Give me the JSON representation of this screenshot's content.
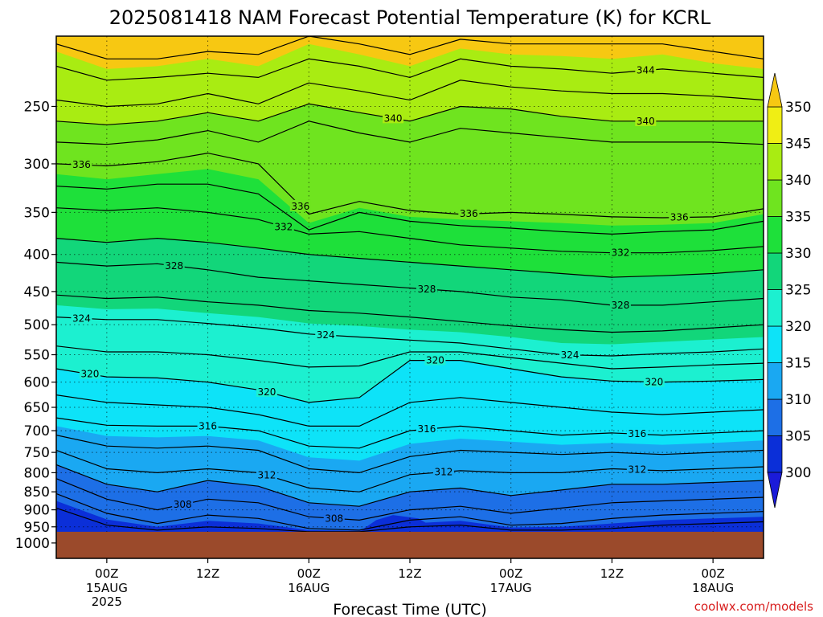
{
  "title": "2025081418 NAM Forecast Potential Temperature (K) for KCRL",
  "xlabel": "Forecast Time (UTC)",
  "credit": "coolwx.com/models",
  "colors": {
    "ground": "#9b4a2b",
    "bands": [
      {
        "from": 300,
        "to": 305,
        "color": "#0b2fd8"
      },
      {
        "from": 305,
        "to": 310,
        "color": "#1d6fe6"
      },
      {
        "from": 310,
        "to": 315,
        "color": "#1aa8f2"
      },
      {
        "from": 315,
        "to": 320,
        "color": "#0de3f8"
      },
      {
        "from": 320,
        "to": 325,
        "color": "#1cf0d0"
      },
      {
        "from": 325,
        "to": 330,
        "color": "#12d67a"
      },
      {
        "from": 330,
        "to": 335,
        "color": "#1ee03a"
      },
      {
        "from": 335,
        "to": 340,
        "color": "#6fe41f"
      },
      {
        "from": 340,
        "to": 345,
        "color": "#a9ec12"
      },
      {
        "from": 345,
        "to": 350,
        "color": "#f0ee14"
      },
      {
        "from": 350,
        "to": 360,
        "color": "#f7c812"
      }
    ],
    "below_min": "#1b1bd9",
    "above_max": "#f7c812"
  },
  "chart_data": {
    "type": "heatmap",
    "title": "2025081418 NAM Forecast Potential Temperature (K) for KCRL",
    "xlabel": "Forecast Time (UTC)",
    "ylabel": "",
    "x_ticks": [
      {
        "hour": 6,
        "label": "00Z",
        "sub": [
          "15AUG",
          "2025"
        ]
      },
      {
        "hour": 18,
        "label": "12Z",
        "sub": []
      },
      {
        "hour": 30,
        "label": "00Z",
        "sub": [
          "16AUG"
        ]
      },
      {
        "hour": 42,
        "label": "12Z",
        "sub": []
      },
      {
        "hour": 54,
        "label": "00Z",
        "sub": [
          "17AUG"
        ]
      },
      {
        "hour": 66,
        "label": "12Z",
        "sub": []
      },
      {
        "hour": 78,
        "label": "00Z",
        "sub": [
          "18AUG"
        ]
      }
    ],
    "x_range_hours": [
      0,
      84
    ],
    "y_ticks": [
      250,
      300,
      350,
      400,
      450,
      500,
      550,
      600,
      650,
      700,
      750,
      800,
      850,
      900,
      950,
      1000
    ],
    "y_range_mb": [
      200,
      1050
    ],
    "y_scale": "log-pressure",
    "ground_top_mb": 965,
    "colorbar_ticks": [
      300,
      305,
      310,
      315,
      320,
      325,
      330,
      335,
      340,
      345,
      350
    ],
    "x": [
      0,
      6,
      12,
      18,
      24,
      30,
      36,
      42,
      48,
      54,
      60,
      66,
      72,
      78,
      84
    ],
    "contour_interval": 2,
    "isentropes": [
      {
        "theta": 346,
        "p": [
          205,
          215,
          215,
          210,
          212,
          200,
          205,
          212,
          202,
          205,
          205,
          205,
          205,
          210,
          215
        ]
      },
      {
        "theta": 344,
        "p": [
          220,
          230,
          228,
          225,
          228,
          215,
          220,
          228,
          215,
          220,
          222,
          225,
          222,
          225,
          228
        ]
      },
      {
        "theta": 342,
        "p": [
          245,
          250,
          248,
          240,
          248,
          232,
          238,
          245,
          230,
          235,
          238,
          240,
          240,
          242,
          245
        ]
      },
      {
        "theta": 340,
        "p": [
          262,
          265,
          262,
          255,
          262,
          248,
          255,
          262,
          250,
          252,
          258,
          262,
          262,
          262,
          262
        ]
      },
      {
        "theta": 338,
        "p": [
          280,
          282,
          278,
          270,
          280,
          262,
          272,
          280,
          268,
          272,
          276,
          280,
          280,
          280,
          282
        ]
      },
      {
        "theta": 336,
        "p": [
          300,
          302,
          298,
          290,
          300,
          352,
          338,
          348,
          352,
          350,
          352,
          355,
          356,
          355,
          346
        ]
      },
      {
        "theta": 334,
        "p": [
          322,
          325,
          320,
          320,
          330,
          370,
          350,
          360,
          365,
          368,
          372,
          375,
          372,
          370,
          360
        ]
      },
      {
        "theta": 332,
        "p": [
          345,
          348,
          345,
          350,
          358,
          375,
          372,
          380,
          388,
          392,
          396,
          398,
          398,
          395,
          390
        ]
      },
      {
        "theta": 330,
        "p": [
          380,
          385,
          380,
          385,
          392,
          400,
          405,
          410,
          415,
          420,
          425,
          430,
          428,
          425,
          420
        ]
      },
      {
        "theta": 328,
        "p": [
          410,
          415,
          412,
          420,
          430,
          435,
          440,
          445,
          450,
          458,
          462,
          470,
          470,
          465,
          460
        ]
      },
      {
        "theta": 326,
        "p": [
          455,
          460,
          458,
          465,
          470,
          478,
          482,
          488,
          495,
          502,
          508,
          512,
          510,
          505,
          500
        ]
      },
      {
        "theta": 324,
        "p": [
          488,
          492,
          492,
          498,
          505,
          515,
          520,
          525,
          530,
          540,
          550,
          552,
          548,
          545,
          540
        ]
      },
      {
        "theta": 322,
        "p": [
          535,
          545,
          545,
          550,
          560,
          572,
          570,
          545,
          545,
          555,
          565,
          575,
          572,
          568,
          565
        ]
      },
      {
        "theta": 320,
        "p": [
          575,
          590,
          592,
          600,
          615,
          640,
          630,
          560,
          560,
          575,
          590,
          598,
          600,
          598,
          595
        ]
      },
      {
        "theta": 318,
        "p": [
          625,
          640,
          645,
          650,
          665,
          690,
          690,
          640,
          630,
          640,
          650,
          660,
          665,
          660,
          655
        ]
      },
      {
        "theta": 316,
        "p": [
          672,
          688,
          690,
          690,
          700,
          735,
          740,
          700,
          690,
          700,
          710,
          705,
          710,
          705,
          700
        ]
      },
      {
        "theta": 314,
        "p": [
          710,
          735,
          740,
          735,
          745,
          790,
          800,
          760,
          745,
          750,
          755,
          750,
          755,
          750,
          745
        ]
      },
      {
        "theta": 312,
        "p": [
          745,
          790,
          800,
          790,
          800,
          840,
          850,
          805,
          795,
          800,
          800,
          790,
          795,
          790,
          785
        ]
      },
      {
        "theta": 310,
        "p": [
          780,
          830,
          850,
          820,
          835,
          880,
          890,
          850,
          840,
          860,
          845,
          830,
          830,
          825,
          820
        ]
      },
      {
        "theta": 308,
        "p": [
          815,
          870,
          900,
          870,
          880,
          920,
          930,
          900,
          890,
          910,
          895,
          880,
          875,
          870,
          865
        ]
      },
      {
        "theta": 306,
        "p": [
          855,
          910,
          940,
          915,
          925,
          955,
          960,
          930,
          920,
          945,
          940,
          925,
          915,
          910,
          905
        ]
      },
      {
        "theta": 304,
        "p": [
          895,
          945,
          960,
          950,
          955,
          965,
          965,
          950,
          945,
          960,
          960,
          955,
          945,
          940,
          935
        ]
      }
    ],
    "fill_surfaces": [
      {
        "theta": 345,
        "p": [
          210,
          222,
          220,
          215,
          220,
          205,
          212,
          220,
          208,
          212,
          213,
          215,
          212,
          218,
          222
        ]
      },
      {
        "theta": 340,
        "p": [
          262,
          265,
          262,
          255,
          262,
          248,
          255,
          262,
          250,
          252,
          258,
          262,
          262,
          262,
          262
        ]
      },
      {
        "theta": 335,
        "p": [
          310,
          315,
          310,
          305,
          315,
          362,
          345,
          355,
          358,
          360,
          362,
          365,
          364,
          362,
          352
        ]
      },
      {
        "theta": 330,
        "p": [
          380,
          385,
          380,
          385,
          392,
          400,
          405,
          410,
          415,
          420,
          425,
          430,
          428,
          425,
          420
        ]
      },
      {
        "theta": 325,
        "p": [
          470,
          476,
          475,
          482,
          488,
          498,
          502,
          508,
          512,
          520,
          530,
          532,
          528,
          524,
          520
        ]
      },
      {
        "theta": 320,
        "p": [
          575,
          590,
          592,
          600,
          615,
          640,
          630,
          560,
          560,
          575,
          590,
          598,
          600,
          598,
          595
        ]
      },
      {
        "theta": 315,
        "p": [
          690,
          712,
          715,
          712,
          722,
          762,
          770,
          730,
          718,
          725,
          732,
          728,
          732,
          728,
          722
        ]
      },
      {
        "theta": 310,
        "p": [
          780,
          830,
          850,
          820,
          835,
          880,
          890,
          850,
          840,
          860,
          845,
          830,
          830,
          825,
          820
        ]
      },
      {
        "theta": 305,
        "p": [
          875,
          928,
          950,
          932,
          940,
          960,
          962,
          940,
          932,
          952,
          950,
          940,
          930,
          925,
          920
        ]
      }
    ],
    "contour_labels": [
      {
        "theta": 344,
        "hour": 70
      },
      {
        "theta": 340,
        "hour": 40
      },
      {
        "theta": 340,
        "hour": 70
      },
      {
        "theta": 336,
        "hour": 3
      },
      {
        "theta": 336,
        "hour": 29
      },
      {
        "theta": 336,
        "hour": 49
      },
      {
        "theta": 336,
        "hour": 74
      },
      {
        "theta": 332,
        "hour": 27
      },
      {
        "theta": 332,
        "hour": 67
      },
      {
        "theta": 328,
        "hour": 14
      },
      {
        "theta": 328,
        "hour": 44
      },
      {
        "theta": 328,
        "hour": 67
      },
      {
        "theta": 324,
        "hour": 3
      },
      {
        "theta": 324,
        "hour": 32
      },
      {
        "theta": 324,
        "hour": 61
      },
      {
        "theta": 320,
        "hour": 4
      },
      {
        "theta": 320,
        "hour": 25
      },
      {
        "theta": 320,
        "hour": 45
      },
      {
        "theta": 320,
        "hour": 71
      },
      {
        "theta": 316,
        "hour": 18
      },
      {
        "theta": 316,
        "hour": 44
      },
      {
        "theta": 316,
        "hour": 69
      },
      {
        "theta": 312,
        "hour": 25
      },
      {
        "theta": 312,
        "hour": 46
      },
      {
        "theta": 312,
        "hour": 69
      },
      {
        "theta": 308,
        "hour": 15
      },
      {
        "theta": 308,
        "hour": 33
      }
    ]
  }
}
